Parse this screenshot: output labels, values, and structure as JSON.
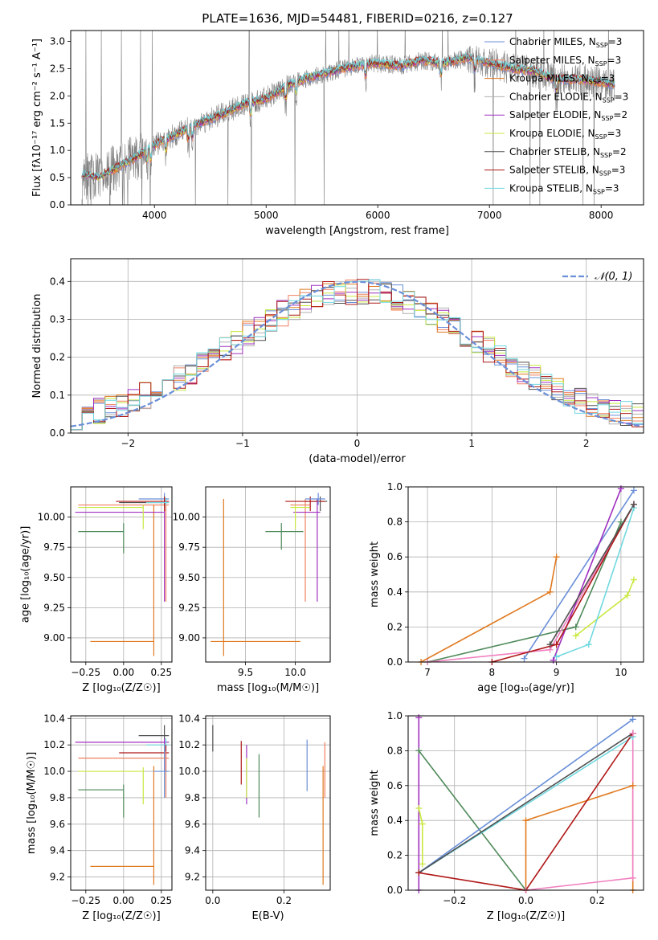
{
  "figure": {
    "title": "PLATE=1636, MJD=54481, FIBERID=0216, z=0.127"
  },
  "colors": {
    "data": "#808080",
    "Chabrier MILES": "#6a8fd8",
    "Salpeter MILES": "#f08060",
    "Kroupa MILES": "#e07a20",
    "Chabrier ELODIE": "#b0b0b0",
    "Salpeter ELODIE": "#a030c0",
    "Kroupa ELODIE": "#c8e840",
    "Chabrier STELIB": "#505050",
    "Salpeter STELIB": "#b01818",
    "Kroupa STELIB": "#70d8e0",
    "gaussian": "#6a8fd8",
    "green": "#4f8a5a",
    "pink": "#f080c0"
  },
  "chart_data": [
    {
      "id": "spectrum",
      "type": "line",
      "title": "PLATE=1636, MJD=54481, FIBERID=0216, z=0.127",
      "xlabel": "wavelength [Angstrom, rest frame]",
      "ylabel": "Flux [fλ10⁻¹⁷ erg cm⁻² s⁻¹ A⁻¹]",
      "xlim": [
        3250,
        8380
      ],
      "ylim": [
        0,
        3.2
      ],
      "xticks": [
        "4000",
        "5000",
        "6000",
        "7000",
        "8000"
      ],
      "yticks": [
        "0.0",
        "0.5",
        "1.0",
        "1.5",
        "2.0",
        "2.5",
        "3.0"
      ],
      "grid": false,
      "legend_position": "top-right",
      "legend": [
        {
          "label": "Chabrier MILES, N",
          "sub": "SSP",
          "suffix": "=3"
        },
        {
          "label": "Salpeter MILES, N",
          "sub": "SSP",
          "suffix": "=3"
        },
        {
          "label": "Kroupa MILES, N",
          "sub": "SSP",
          "suffix": "=3"
        },
        {
          "label": "Chabrier ELODIE, N",
          "sub": "SSP",
          "suffix": "=3"
        },
        {
          "label": "Salpeter ELODIE, N",
          "sub": "SSP",
          "suffix": "=2"
        },
        {
          "label": "Kroupa ELODIE, N",
          "sub": "SSP",
          "suffix": "=3"
        },
        {
          "label": "Chabrier STELIB, N",
          "sub": "SSP",
          "suffix": "=2"
        },
        {
          "label": "Salpeter STELIB, N",
          "sub": "SSP",
          "suffix": "=3"
        },
        {
          "label": "Kroupa STELIB, N",
          "sub": "SSP",
          "suffix": "=3"
        }
      ],
      "continuum": [
        [
          3350,
          0.55
        ],
        [
          3500,
          0.5
        ],
        [
          3700,
          0.72
        ],
        [
          3900,
          0.95
        ],
        [
          4000,
          1.1
        ],
        [
          4200,
          1.3
        ],
        [
          4400,
          1.5
        ],
        [
          4600,
          1.65
        ],
        [
          4800,
          1.85
        ],
        [
          5000,
          1.95
        ],
        [
          5200,
          2.2
        ],
        [
          5400,
          2.35
        ],
        [
          5600,
          2.45
        ],
        [
          5800,
          2.55
        ],
        [
          6000,
          2.6
        ],
        [
          6200,
          2.55
        ],
        [
          6400,
          2.65
        ],
        [
          6600,
          2.6
        ],
        [
          6800,
          2.7
        ],
        [
          7000,
          2.6
        ],
        [
          7200,
          2.5
        ],
        [
          7400,
          2.45
        ],
        [
          7600,
          2.3
        ],
        [
          7800,
          2.3
        ],
        [
          8000,
          2.25
        ],
        [
          8120,
          2.2
        ]
      ]
    },
    {
      "id": "residuals",
      "type": "bar",
      "xlabel": "(data-model)/error",
      "ylabel": "Normed distribution",
      "xlim": [
        -2.5,
        2.5
      ],
      "ylim": [
        0,
        0.46
      ],
      "xticks": [
        "−2",
        "−1",
        "0",
        "1",
        "2"
      ],
      "yticks": [
        "0.0",
        "0.1",
        "0.2",
        "0.3",
        "0.4"
      ],
      "grid": true,
      "legend_position": "top-right",
      "gaussian_label": "𝒩(0, 1)",
      "bin_width": 0.1
    },
    {
      "id": "age_vs_Z",
      "type": "scatter",
      "xlabel": "Z [log₁₀(Z/Z☉)]",
      "ylabel": "age  [log₁₀(age/yr)]",
      "xlim": [
        -0.35,
        0.32
      ],
      "ylim": [
        8.8,
        10.25
      ],
      "xticks": [
        "−0.25",
        "0.00",
        "0.25"
      ],
      "yticks": [
        "9.00",
        "9.25",
        "9.50",
        "9.75",
        "10.00"
      ],
      "grid": true,
      "errorbars": [
        {
          "color": "Chabrier MILES",
          "x": 0.27,
          "y": 10.15,
          "xlo": 0.1,
          "xhi": 0.3,
          "ylo": 10.1,
          "yhi": 10.2
        },
        {
          "color": "Salpeter MILES",
          "x": 0.28,
          "y": 10.1,
          "xlo": -0.3,
          "xhi": 0.3,
          "ylo": 9.3,
          "yhi": 10.15
        },
        {
          "color": "Kroupa MILES",
          "x": 0.2,
          "y": 8.97,
          "xlo": -0.22,
          "xhi": 0.2,
          "ylo": 8.85,
          "yhi": 10.1
        },
        {
          "color": "Salpeter ELODIE",
          "x": 0.27,
          "y": 10.04,
          "xlo": -0.32,
          "xhi": 0.27,
          "ylo": 9.3,
          "yhi": 10.15
        },
        {
          "color": "Kroupa ELODIE",
          "x": 0.13,
          "y": 10.08,
          "xlo": -0.3,
          "xhi": 0.13,
          "ylo": 9.9,
          "yhi": 10.1
        },
        {
          "color": "Chabrier STELIB",
          "x": 0.27,
          "y": 10.12,
          "xlo": -0.03,
          "xhi": 0.3,
          "ylo": 10.05,
          "yhi": 10.17
        },
        {
          "color": "Salpeter STELIB",
          "x": 0.27,
          "y": 10.13,
          "xlo": -0.05,
          "xhi": 0.3,
          "ylo": 10.05,
          "yhi": 10.17
        },
        {
          "color": "green",
          "x": 0.0,
          "y": 9.88,
          "xlo": -0.3,
          "xhi": 0.0,
          "ylo": 9.7,
          "yhi": 9.95
        },
        {
          "color": "Kroupa STELIB",
          "x": 0.28,
          "y": 10.12,
          "xlo": 0.15,
          "xhi": 0.3,
          "ylo": 10.1,
          "yhi": 10.16
        }
      ]
    },
    {
      "id": "age_vs_mass",
      "type": "scatter",
      "xlabel": "mass [log₁₀(M/M☉)]",
      "ylabel": "",
      "xlim": [
        9.1,
        10.35
      ],
      "ylim": [
        8.8,
        10.25
      ],
      "xticks": [
        "9.5",
        "10.0"
      ],
      "yticks": [
        "9.00",
        "9.25",
        "9.50",
        "9.75",
        "10.00"
      ],
      "grid": true,
      "errorbars": [
        {
          "color": "Kroupa MILES",
          "x": 9.28,
          "y": 8.97,
          "xlo": 9.15,
          "xhi": 10.05,
          "ylo": 8.85,
          "yhi": 10.15
        },
        {
          "color": "Salpeter MILES",
          "x": 10.1,
          "y": 10.1,
          "xlo": 9.95,
          "xhi": 10.15,
          "ylo": 9.3,
          "yhi": 10.15
        },
        {
          "color": "Salpeter ELODIE",
          "x": 10.22,
          "y": 10.04,
          "xlo": 9.98,
          "xhi": 10.25,
          "ylo": 9.3,
          "yhi": 10.15
        },
        {
          "color": "Kroupa ELODIE",
          "x": 10.0,
          "y": 10.08,
          "xlo": 9.95,
          "xhi": 10.15,
          "ylo": 9.9,
          "yhi": 10.1
        },
        {
          "color": "Chabrier STELIB",
          "x": 10.25,
          "y": 10.13,
          "xlo": 10.1,
          "xhi": 10.32,
          "ylo": 10.05,
          "yhi": 10.17
        },
        {
          "color": "Salpeter STELIB",
          "x": 10.15,
          "y": 10.13,
          "xlo": 9.9,
          "xhi": 10.3,
          "ylo": 10.05,
          "yhi": 10.17
        },
        {
          "color": "green",
          "x": 9.86,
          "y": 9.88,
          "xlo": 9.7,
          "xhi": 10.08,
          "ylo": 9.73,
          "yhi": 9.95
        },
        {
          "color": "Chabrier MILES",
          "x": 10.23,
          "y": 10.15,
          "xlo": 10.1,
          "xhi": 10.3,
          "ylo": 10.1,
          "yhi": 10.2
        }
      ]
    },
    {
      "id": "weight_vs_age",
      "type": "line",
      "xlabel": "age  [log₁₀(age/yr)]",
      "ylabel": "mass weight",
      "xlim": [
        6.7,
        10.35
      ],
      "ylim": [
        0,
        1.0
      ],
      "xticks": [
        "7",
        "8",
        "9",
        "10"
      ],
      "yticks": [
        "0.0",
        "0.2",
        "0.4",
        "0.6",
        "0.8",
        "1.0"
      ],
      "grid": true,
      "series": [
        {
          "color": "Kroupa MILES",
          "x": [
            6.9,
            8.9,
            9.0
          ],
          "y": [
            0.0,
            0.4,
            0.6
          ]
        },
        {
          "color": "Chabrier MILES",
          "x": [
            8.5,
            10.2
          ],
          "y": [
            0.02,
            0.98
          ]
        },
        {
          "color": "green",
          "x": [
            7.0,
            9.3,
            10.0
          ],
          "y": [
            0.0,
            0.2,
            0.8
          ]
        },
        {
          "color": "pink",
          "x": [
            7.0,
            8.9,
            10.2
          ],
          "y": [
            0.0,
            0.07,
            0.9
          ]
        },
        {
          "color": "Salpeter ELODIE",
          "x": [
            8.95,
            10.0
          ],
          "y": [
            0.01,
            0.99
          ]
        },
        {
          "color": "Kroupa ELODIE",
          "x": [
            9.3,
            10.1,
            10.2
          ],
          "y": [
            0.15,
            0.38,
            0.47
          ]
        },
        {
          "color": "Kroupa STELIB",
          "x": [
            9.0,
            9.5,
            10.2
          ],
          "y": [
            0.03,
            0.1,
            0.88
          ]
        },
        {
          "color": "Salpeter STELIB",
          "x": [
            8.0,
            9.0,
            10.2
          ],
          "y": [
            0.0,
            0.1,
            0.9
          ]
        },
        {
          "color": "Chabrier STELIB",
          "x": [
            8.9,
            10.2
          ],
          "y": [
            0.1,
            0.9
          ]
        }
      ]
    },
    {
      "id": "mass_vs_Z",
      "type": "scatter",
      "xlabel": "Z [log₁₀(Z/Z☉)]",
      "ylabel": "mass [log₁₀(M/M☉)]",
      "xlim": [
        -0.35,
        0.32
      ],
      "ylim": [
        9.1,
        10.42
      ],
      "xticks": [
        "−0.25",
        "0.00",
        "0.25"
      ],
      "yticks": [
        "9.2",
        "9.4",
        "9.6",
        "9.8",
        "10.0",
        "10.2",
        "10.4"
      ],
      "grid": true,
      "errorbars": [
        {
          "color": "Chabrier STELIB",
          "x": 0.27,
          "y": 10.27,
          "xlo": 0.1,
          "xhi": 0.3,
          "ylo": 10.15,
          "yhi": 10.35
        },
        {
          "color": "Salpeter ELODIE",
          "x": 0.27,
          "y": 10.22,
          "xlo": -0.32,
          "xhi": 0.3,
          "ylo": 10.0,
          "yhi": 10.25
        },
        {
          "color": "Kroupa STELIB",
          "x": 0.28,
          "y": 10.2,
          "xlo": 0.15,
          "xhi": 0.3,
          "ylo": 9.82,
          "yhi": 10.25
        },
        {
          "color": "Salpeter STELIB",
          "x": 0.28,
          "y": 10.14,
          "xlo": -0.03,
          "xhi": 0.3,
          "ylo": 10.0,
          "yhi": 10.2
        },
        {
          "color": "Salpeter MILES",
          "x": 0.28,
          "y": 10.1,
          "xlo": -0.3,
          "xhi": 0.3,
          "ylo": 9.8,
          "yhi": 10.15
        },
        {
          "color": "Kroupa ELODIE",
          "x": 0.13,
          "y": 10.0,
          "xlo": -0.3,
          "xhi": 0.13,
          "ylo": 9.75,
          "yhi": 10.03
        },
        {
          "color": "green",
          "x": 0.0,
          "y": 9.86,
          "xlo": -0.3,
          "xhi": 0.0,
          "ylo": 9.65,
          "yhi": 9.9
        },
        {
          "color": "Kroupa MILES",
          "x": 0.2,
          "y": 9.28,
          "xlo": -0.22,
          "xhi": 0.2,
          "ylo": 9.14,
          "yhi": 10.04
        },
        {
          "color": "Chabrier MILES",
          "x": 0.27,
          "y": 10.0,
          "xlo": 0.2,
          "xhi": 0.3,
          "ylo": 9.8,
          "yhi": 10.2
        }
      ]
    },
    {
      "id": "mass_vs_EBV",
      "type": "scatter",
      "xlabel": "E(B-V)",
      "ylabel": "",
      "xlim": [
        -0.02,
        0.33
      ],
      "ylim": [
        9.1,
        10.42
      ],
      "xticks": [
        "0.0",
        "0.2"
      ],
      "yticks": [
        "9.2",
        "9.4",
        "9.6",
        "9.8",
        "10.0",
        "10.2",
        "10.4"
      ],
      "grid": true,
      "vlines": [
        {
          "color": "Chabrier STELIB",
          "x": 0.0,
          "ylo": 10.15,
          "yhi": 10.35
        },
        {
          "color": "Salpeter STELIB",
          "x": 0.08,
          "ylo": 9.9,
          "yhi": 10.23
        },
        {
          "color": "Salpeter ELODIE",
          "x": 0.095,
          "ylo": 9.75,
          "yhi": 10.2
        },
        {
          "color": "Kroupa ELODIE",
          "x": 0.095,
          "ylo": 9.8,
          "yhi": 10.1
        },
        {
          "color": "green",
          "x": 0.13,
          "ylo": 9.65,
          "yhi": 10.13
        },
        {
          "color": "Chabrier MILES",
          "x": 0.265,
          "ylo": 9.85,
          "yhi": 10.24
        },
        {
          "color": "Salpeter MILES",
          "x": 0.315,
          "ylo": 9.8,
          "yhi": 10.22
        },
        {
          "color": "Kroupa MILES",
          "x": 0.31,
          "ylo": 9.14,
          "yhi": 10.04
        }
      ]
    },
    {
      "id": "weight_vs_Z",
      "type": "line",
      "xlabel": "Z [log₁₀(Z/Z☉)]",
      "ylabel": "mass weight",
      "xlim": [
        -0.33,
        0.33
      ],
      "ylim": [
        0,
        1.0
      ],
      "xticks": [
        "−0.2",
        "0.0",
        "0.2"
      ],
      "yticks": [
        "0.0",
        "0.2",
        "0.4",
        "0.6",
        "0.8",
        "1.0"
      ],
      "grid": true,
      "series": [
        {
          "color": "Salpeter ELODIE",
          "x": [
            -0.3,
            -0.3
          ],
          "y": [
            0.0,
            0.99
          ]
        },
        {
          "color": "Kroupa ELODIE",
          "x": [
            -0.29,
            -0.29,
            -0.3
          ],
          "y": [
            0.15,
            0.38,
            0.47
          ]
        },
        {
          "color": "green",
          "x": [
            -0.3,
            0.0
          ],
          "y": [
            0.8,
            0.0
          ]
        },
        {
          "color": "Kroupa MILES",
          "x": [
            0.0,
            0.0,
            0.3,
            0.3
          ],
          "y": [
            0.0,
            0.4,
            0.6,
            0.0
          ]
        },
        {
          "color": "Chabrier MILES",
          "x": [
            -0.3,
            0.3
          ],
          "y": [
            0.1,
            0.98
          ]
        },
        {
          "color": "Kroupa STELIB",
          "x": [
            -0.3,
            0.3
          ],
          "y": [
            0.1,
            0.88
          ]
        },
        {
          "color": "Chabrier STELIB",
          "x": [
            -0.3,
            0.3
          ],
          "y": [
            0.1,
            0.9
          ]
        },
        {
          "color": "Salpeter STELIB",
          "x": [
            -0.3,
            0.0,
            0.3
          ],
          "y": [
            0.1,
            0.0,
            0.9
          ]
        },
        {
          "color": "pink",
          "x": [
            0.0,
            0.3,
            0.3
          ],
          "y": [
            0.0,
            0.07,
            0.9
          ]
        }
      ]
    }
  ]
}
